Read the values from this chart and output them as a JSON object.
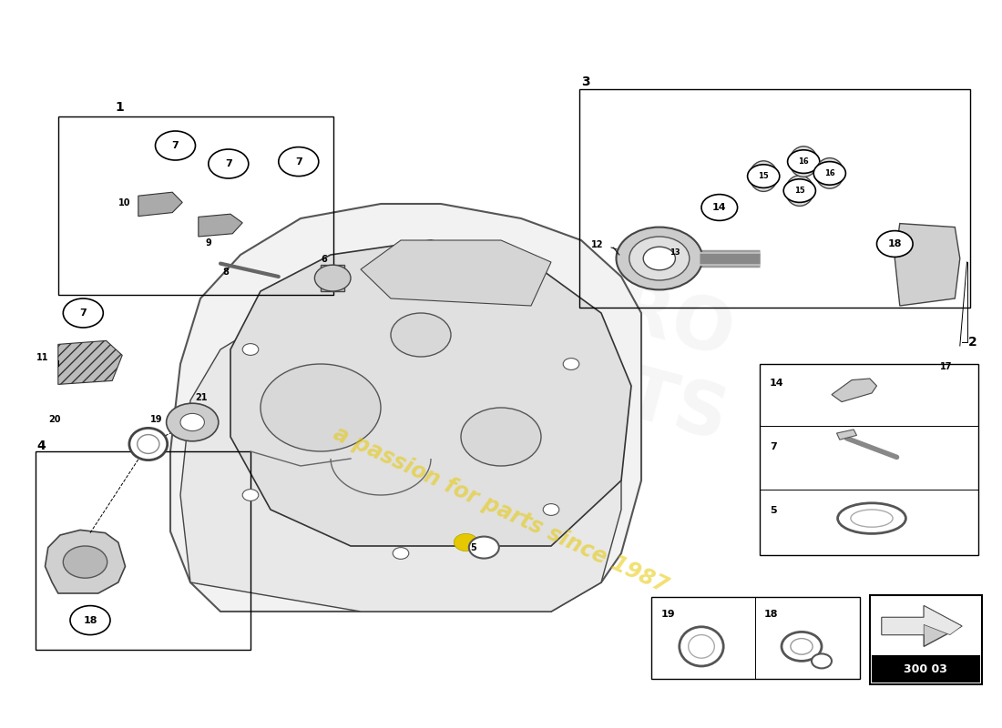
{
  "bg_color": "#ffffff",
  "watermark_text": "a passion for parts since 1987",
  "part_code": "300 03",
  "accent_color": "#e6c800",
  "line_color": "#000000",
  "circle_fill": "#ffffff",
  "circle_edge": "#000000"
}
